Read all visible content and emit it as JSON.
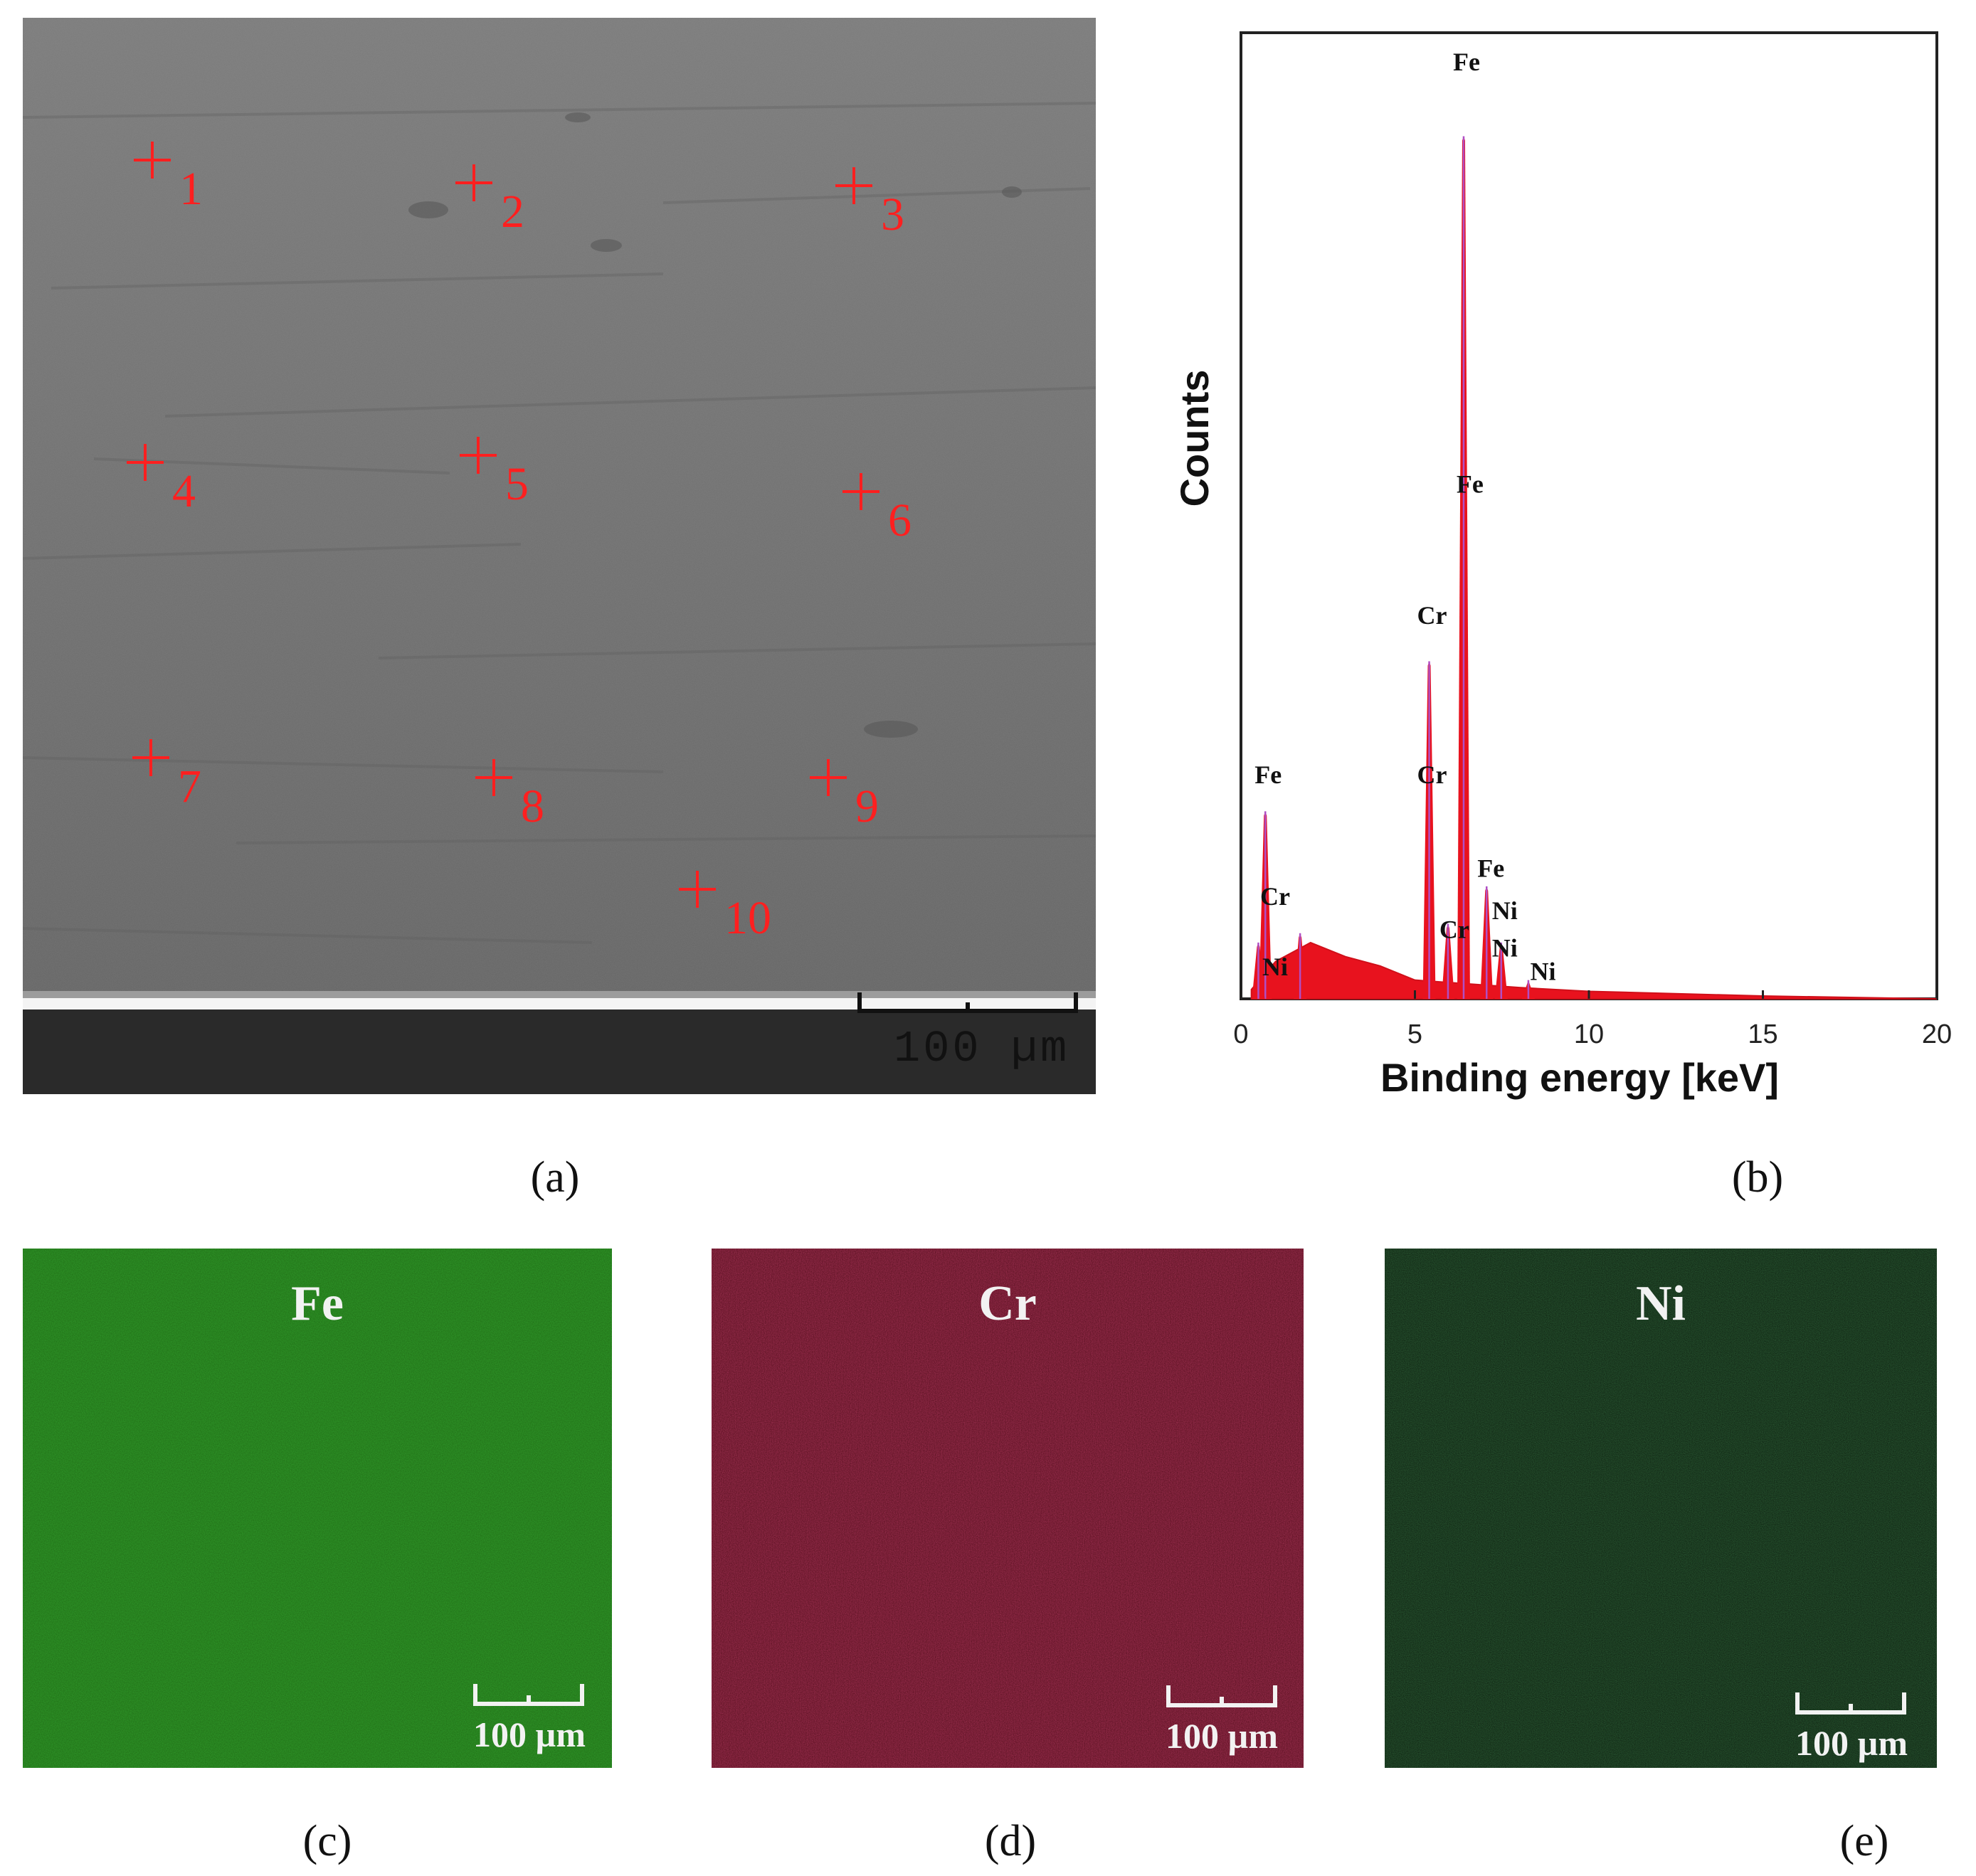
{
  "panel_a": {
    "caption": "(a)",
    "points": [
      "1",
      "2",
      "3",
      "4",
      "5",
      "6",
      "7",
      "8",
      "9",
      "10"
    ],
    "scale_bar": "100 µm"
  },
  "panel_b": {
    "caption": "(b)"
  },
  "chart_data": {
    "type": "line",
    "xlabel": "Binding energy [keV]",
    "ylabel": "Counts",
    "xlim": [
      0,
      20
    ],
    "xticks": [
      "0",
      "5",
      "10",
      "15",
      "20"
    ],
    "y_units": "relative (no tick labels)",
    "grid": false,
    "series": [
      {
        "peaks": [
          {
            "x": 0.7,
            "y": 0.2
          },
          {
            "x": 0.5,
            "y": 0.06
          },
          {
            "x": 1.7,
            "y": 0.07
          },
          {
            "x": 5.41,
            "y": 0.36
          },
          {
            "x": 5.95,
            "y": 0.08
          },
          {
            "x": 6.4,
            "y": 0.92
          },
          {
            "x": 7.06,
            "y": 0.12
          },
          {
            "x": 7.48,
            "y": 0.06
          },
          {
            "x": 8.26,
            "y": 0.02
          }
        ],
        "background": [
          [
            0.3,
            0.01
          ],
          [
            1.0,
            0.04
          ],
          [
            2.0,
            0.06
          ],
          [
            3.0,
            0.045
          ],
          [
            4.0,
            0.035
          ],
          [
            5.0,
            0.02
          ],
          [
            8.0,
            0.012
          ],
          [
            10.0,
            0.008
          ],
          [
            15.0,
            0.003
          ],
          [
            20.0,
            0.0
          ]
        ]
      }
    ],
    "peak_labels": [
      {
        "text": "Fe",
        "x": 6.4,
        "y": 0.99
      },
      {
        "text": "Fe",
        "x": 6.5,
        "y": 0.54
      },
      {
        "text": "Cr",
        "x": 5.41,
        "y": 0.4
      },
      {
        "text": "Cr",
        "x": 5.41,
        "y": 0.23
      },
      {
        "text": "Fe",
        "x": 0.7,
        "y": 0.23
      },
      {
        "text": "Cr",
        "x": 0.9,
        "y": 0.1
      },
      {
        "text": "Ni",
        "x": 0.9,
        "y": 0.025
      },
      {
        "text": "Cr",
        "x": 6.05,
        "y": 0.065
      },
      {
        "text": "Fe",
        "x": 7.1,
        "y": 0.13
      },
      {
        "text": "Ni",
        "x": 7.5,
        "y": 0.085
      },
      {
        "text": "Ni",
        "x": 7.5,
        "y": 0.045
      },
      {
        "text": "Ni",
        "x": 8.6,
        "y": 0.02
      }
    ]
  },
  "panel_c": {
    "caption": "(c)",
    "element": "Fe",
    "scale_bar": "100 µm",
    "color": "#1f6e14"
  },
  "panel_d": {
    "caption": "(d)",
    "element": "Cr",
    "scale_bar": "100 µm",
    "color": "#5c0c1c"
  },
  "panel_e": {
    "caption": "(e)",
    "element": "Ni",
    "scale_bar": "100 µm",
    "color": "#0f2a12"
  }
}
